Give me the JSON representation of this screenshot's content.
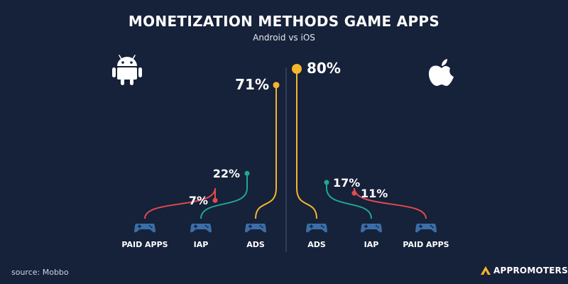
{
  "header": {
    "title": "MONETIZATION METHODS GAME APPS",
    "subtitle": "Android vs iOS"
  },
  "footer": {
    "source": "source: Mobbo",
    "brand": "APPROMOTERS"
  },
  "colors": {
    "background": "#16213a",
    "ads": "#f5b62c",
    "iap": "#1fa98b",
    "paid_apps": "#e24b4b",
    "gamepad": "#3a6ea8",
    "divider": "#4a5570"
  },
  "icons": {
    "left": "android-icon",
    "right": "apple-icon",
    "category": "gamepad-icon"
  },
  "chart_data": [
    {
      "type": "bar",
      "platform": "Android",
      "categories": [
        "PAID APPS",
        "IAP",
        "ADS"
      ],
      "values": [
        7,
        22,
        71
      ],
      "labels": [
        "7%",
        "22%",
        "71%"
      ],
      "ylim": [
        0,
        80
      ]
    },
    {
      "type": "bar",
      "platform": "iOS",
      "categories": [
        "ADS",
        "IAP",
        "PAID APPS"
      ],
      "values": [
        80,
        17,
        11
      ],
      "labels": [
        "80%",
        "17%",
        "11%"
      ],
      "ylim": [
        0,
        80
      ]
    }
  ]
}
